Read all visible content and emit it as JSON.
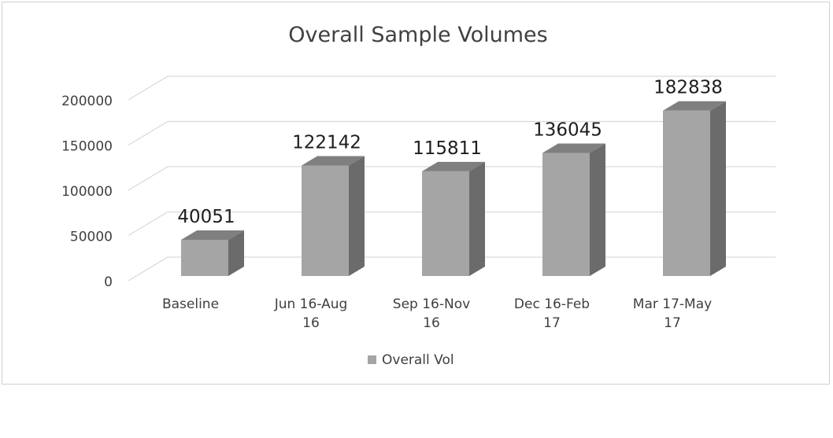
{
  "chart_data": {
    "type": "bar",
    "title": "Overall Sample Volumes",
    "categories": [
      [
        "Baseline"
      ],
      [
        "Jun 16-Aug",
        "16"
      ],
      [
        "Sep 16-Nov",
        "16"
      ],
      [
        "Dec 16-Feb",
        "17"
      ],
      [
        "Mar 17-May",
        "17"
      ]
    ],
    "series": [
      {
        "name": "Overall Vol",
        "values": [
          40051,
          122142,
          115811,
          136045,
          182838
        ]
      }
    ],
    "data_labels": [
      "40051",
      "122142",
      "115811",
      "136045",
      "182838"
    ],
    "y_ticks": [
      "0",
      "50000",
      "100000",
      "150000",
      "200000"
    ],
    "ylim": [
      0,
      200000
    ],
    "legend_position": "bottom",
    "grid": true,
    "style_3d": true,
    "colors": {
      "bar_front": "#a5a5a5",
      "bar_side": "#6b6b6b",
      "bar_top": "#7f7f7f",
      "gridline": "#d9d9d9",
      "text": "#404040"
    }
  }
}
